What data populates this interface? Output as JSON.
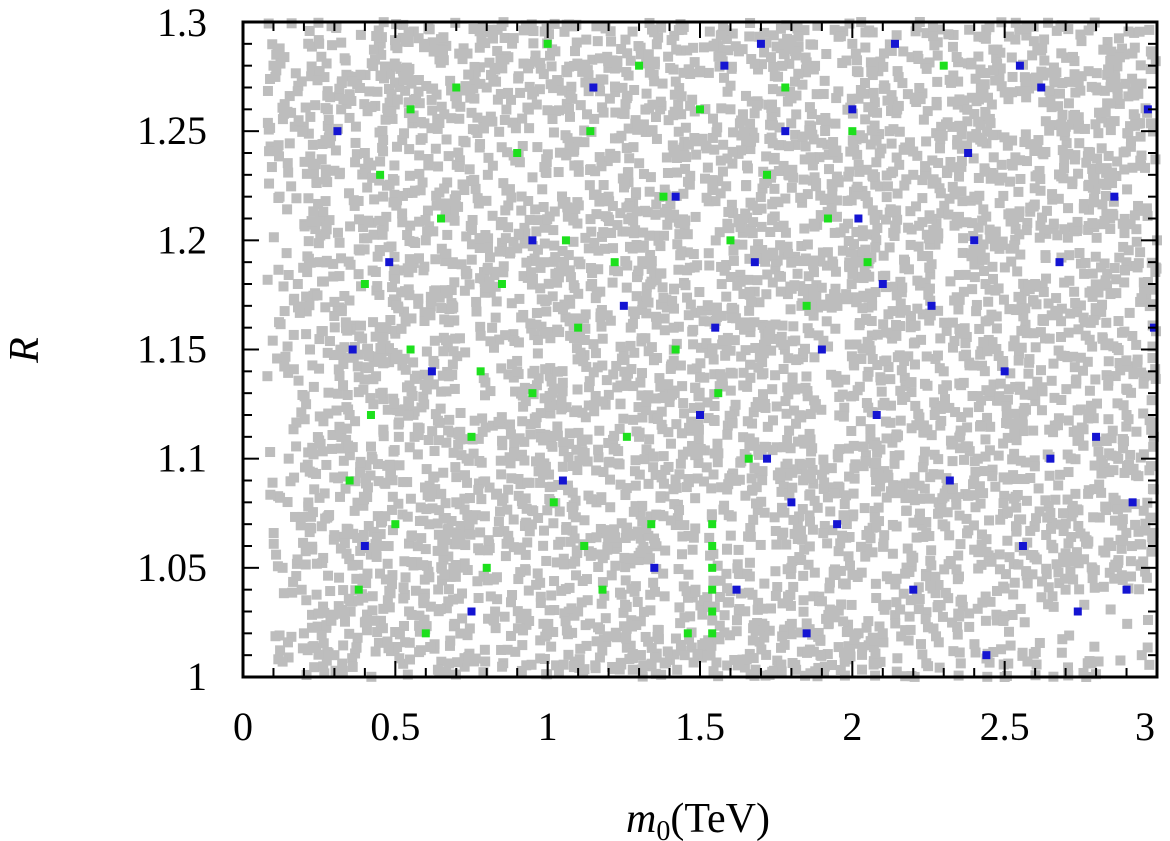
{
  "chart_data": {
    "type": "scatter",
    "title": "",
    "xlabel_var": "m",
    "xlabel_sub": "0",
    "xlabel_unit": "(TeV)",
    "xlabel": "m0(TeV)",
    "ylabel": "R",
    "xlim": [
      0,
      3
    ],
    "ylim": [
      1,
      1.3
    ],
    "xticks": [
      0,
      0.5,
      1,
      1.5,
      2,
      2.5,
      3
    ],
    "xtick_labels": [
      "0",
      "0.5",
      "1",
      "1.5",
      "2",
      "2.5",
      "3"
    ],
    "yticks": [
      1,
      1.05,
      1.1,
      1.15,
      1.2,
      1.25,
      1.3
    ],
    "ytick_labels": [
      "1",
      "1.05",
      "1.1",
      "1.15",
      "1.2",
      "1.25",
      "1.3"
    ],
    "grid": false,
    "legend": "none",
    "series": [
      {
        "name": "gray",
        "color": "#bdbdbd",
        "points": [
          [
            0.1,
            1.28
          ],
          [
            0.12,
            1.22
          ],
          [
            0.15,
            1.1
          ],
          [
            0.13,
            1.05
          ],
          [
            0.18,
            1.18
          ],
          [
            0.2,
            1.02
          ],
          [
            0.25,
            1.29
          ],
          [
            0.22,
            1.15
          ],
          [
            0.3,
            1.01
          ],
          [
            0.35,
            1.12
          ],
          [
            0.4,
            1.24
          ],
          [
            0.45,
            1.06
          ],
          [
            0.6,
            1.2
          ],
          [
            0.7,
            1.08
          ],
          [
            0.8,
            1.27
          ],
          [
            0.9,
            1.14
          ],
          [
            1.1,
            1.03
          ],
          [
            1.2,
            1.22
          ],
          [
            1.3,
            1.11
          ],
          [
            1.45,
            1.01
          ],
          [
            1.6,
            1.26
          ],
          [
            1.8,
            1.05
          ],
          [
            1.9,
            1.17
          ],
          [
            2.1,
            1.02
          ],
          [
            2.2,
            1.23
          ],
          [
            2.4,
            1.09
          ],
          [
            2.5,
            1.0
          ],
          [
            2.6,
            1.18
          ],
          [
            2.7,
            1.04
          ],
          [
            2.8,
            1.27
          ],
          [
            2.9,
            1.12
          ],
          [
            2.95,
            1.01
          ],
          [
            3.0,
            1.2
          ],
          [
            2.85,
            1.06
          ],
          [
            2.3,
            1.14
          ],
          [
            2.0,
            1.29
          ]
        ]
      },
      {
        "name": "blue",
        "color": "#1414d2",
        "points": [
          [
            0.31,
            1.25
          ],
          [
            0.36,
            1.15
          ],
          [
            0.4,
            1.06
          ],
          [
            0.48,
            1.19
          ],
          [
            0.62,
            1.14
          ],
          [
            0.75,
            1.03
          ],
          [
            0.95,
            1.2
          ],
          [
            1.05,
            1.09
          ],
          [
            1.15,
            1.27
          ],
          [
            1.25,
            1.17
          ],
          [
            1.35,
            1.05
          ],
          [
            1.42,
            1.22
          ],
          [
            1.5,
            1.12
          ],
          [
            1.58,
            1.28
          ],
          [
            1.62,
            1.04
          ],
          [
            1.68,
            1.19
          ],
          [
            1.72,
            1.1
          ],
          [
            1.78,
            1.25
          ],
          [
            1.85,
            1.02
          ],
          [
            1.9,
            1.15
          ],
          [
            1.95,
            1.07
          ],
          [
            2.02,
            1.21
          ],
          [
            2.08,
            1.12
          ],
          [
            2.14,
            1.29
          ],
          [
            2.2,
            1.04
          ],
          [
            2.26,
            1.17
          ],
          [
            2.32,
            1.09
          ],
          [
            2.38,
            1.24
          ],
          [
            2.44,
            1.01
          ],
          [
            2.5,
            1.14
          ],
          [
            2.56,
            1.06
          ],
          [
            2.62,
            1.27
          ],
          [
            2.68,
            1.19
          ],
          [
            2.74,
            1.03
          ],
          [
            2.8,
            1.11
          ],
          [
            2.86,
            1.22
          ],
          [
            2.92,
            1.08
          ],
          [
            2.97,
            1.26
          ],
          [
            2.99,
            1.16
          ],
          [
            1.55,
            1.16
          ],
          [
            1.7,
            1.29
          ],
          [
            2.0,
            1.26
          ],
          [
            2.4,
            1.2
          ],
          [
            2.65,
            1.1
          ],
          [
            2.9,
            1.04
          ],
          [
            1.8,
            1.08
          ],
          [
            2.1,
            1.18
          ],
          [
            2.55,
            1.28
          ]
        ]
      },
      {
        "name": "green",
        "color": "#1de01d",
        "points": [
          [
            0.35,
            1.09
          ],
          [
            0.38,
            1.04
          ],
          [
            0.42,
            1.12
          ],
          [
            0.4,
            1.18
          ],
          [
            0.45,
            1.23
          ],
          [
            0.5,
            1.07
          ],
          [
            0.55,
            1.15
          ],
          [
            0.6,
            1.02
          ],
          [
            0.65,
            1.21
          ],
          [
            0.7,
            1.27
          ],
          [
            0.75,
            1.11
          ],
          [
            0.8,
            1.05
          ],
          [
            0.85,
            1.18
          ],
          [
            0.9,
            1.24
          ],
          [
            0.95,
            1.13
          ],
          [
            1.0,
            1.29
          ],
          [
            1.02,
            1.08
          ],
          [
            1.06,
            1.2
          ],
          [
            1.1,
            1.16
          ],
          [
            1.14,
            1.25
          ],
          [
            1.18,
            1.04
          ],
          [
            1.22,
            1.19
          ],
          [
            1.26,
            1.11
          ],
          [
            1.3,
            1.28
          ],
          [
            1.34,
            1.07
          ],
          [
            1.38,
            1.22
          ],
          [
            1.42,
            1.15
          ],
          [
            1.46,
            1.02
          ],
          [
            1.5,
            1.26
          ],
          [
            1.56,
            1.13
          ],
          [
            1.6,
            1.2
          ],
          [
            1.66,
            1.1
          ],
          [
            1.72,
            1.23
          ],
          [
            1.78,
            1.27
          ],
          [
            1.85,
            1.17
          ],
          [
            1.92,
            1.21
          ],
          [
            2.0,
            1.25
          ],
          [
            2.05,
            1.19
          ],
          [
            2.3,
            1.28
          ],
          [
            1.54,
            1.07
          ],
          [
            1.54,
            1.06
          ],
          [
            1.54,
            1.05
          ],
          [
            1.54,
            1.04
          ],
          [
            1.54,
            1.03
          ],
          [
            1.54,
            1.02
          ],
          [
            0.55,
            1.26
          ],
          [
            0.78,
            1.14
          ],
          [
            1.12,
            1.06
          ]
        ]
      }
    ]
  }
}
